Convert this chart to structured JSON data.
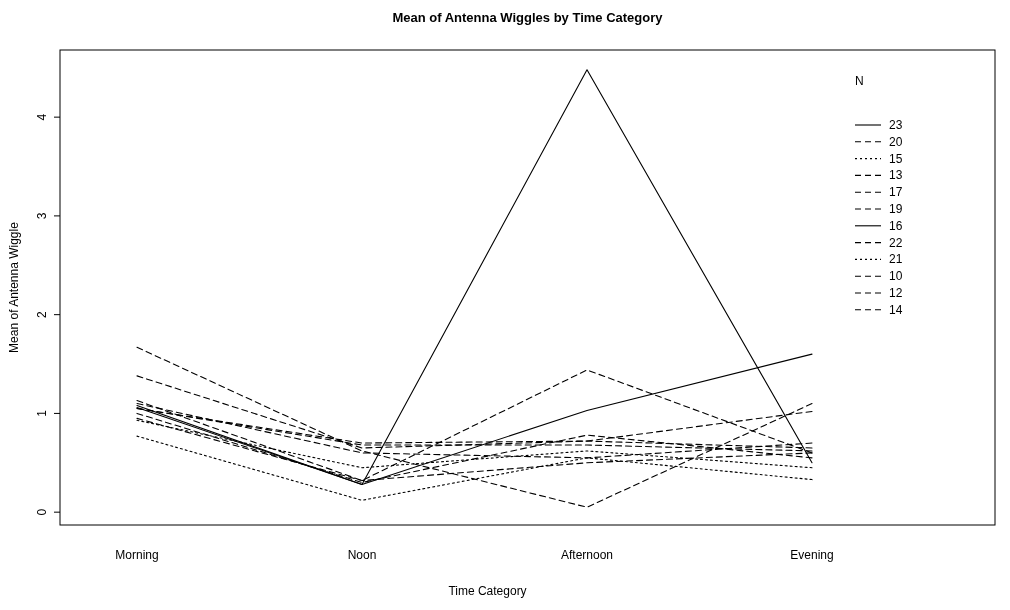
{
  "chart_data": {
    "type": "line",
    "title": "Mean of Antenna Wiggles by Time Category",
    "xlabel": "Time Category",
    "ylabel": "Mean of Antenna Wiggle",
    "legend_title": "N",
    "legend": "top right",
    "categories": [
      "Morning",
      "Noon",
      "Afternoon",
      "Evening"
    ],
    "ylim": [
      -0.13,
      4.68
    ],
    "yticks": [
      0,
      1,
      2,
      3,
      4
    ],
    "grid": false,
    "marker": "none",
    "series": [
      {
        "name": "23",
        "color": "#000000",
        "line_style": "solid",
        "values": [
          1.08,
          0.28,
          4.48,
          0.5
        ]
      },
      {
        "name": "20",
        "color": "#000000",
        "line_style": "dashed",
        "values": [
          1.67,
          0.62,
          0.05,
          1.1
        ]
      },
      {
        "name": "15",
        "color": "#000000",
        "line_style": "dotted",
        "values": [
          0.77,
          0.12,
          0.55,
          0.33
        ]
      },
      {
        "name": "13",
        "color": "#000000",
        "line_style": "dashed",
        "values": [
          1.13,
          0.32,
          1.44,
          0.6
        ]
      },
      {
        "name": "17",
        "color": "#000000",
        "line_style": "dashed",
        "values": [
          1.05,
          0.7,
          0.72,
          1.02
        ]
      },
      {
        "name": "19",
        "color": "#000000",
        "line_style": "dashed",
        "values": [
          1.38,
          0.65,
          0.72,
          0.65
        ]
      },
      {
        "name": "16",
        "color": "#000000",
        "line_style": "solid",
        "values": [
          1.06,
          0.28,
          1.03,
          1.6
        ]
      },
      {
        "name": "22",
        "color": "#000000",
        "line_style": "dashed",
        "values": [
          1.0,
          0.3,
          0.78,
          0.55
        ]
      },
      {
        "name": "21",
        "color": "#000000",
        "line_style": "dotted",
        "values": [
          0.93,
          0.45,
          0.62,
          0.45
        ]
      },
      {
        "name": "10",
        "color": "#000000",
        "line_style": "dashed",
        "values": [
          1.1,
          0.6,
          0.55,
          0.7
        ]
      },
      {
        "name": "12",
        "color": "#000000",
        "line_style": "dashed",
        "values": [
          1.05,
          0.68,
          0.68,
          0.62
        ]
      },
      {
        "name": "14",
        "color": "#000000",
        "line_style": "dashed",
        "values": [
          0.95,
          0.32,
          0.5,
          0.6
        ]
      }
    ]
  }
}
